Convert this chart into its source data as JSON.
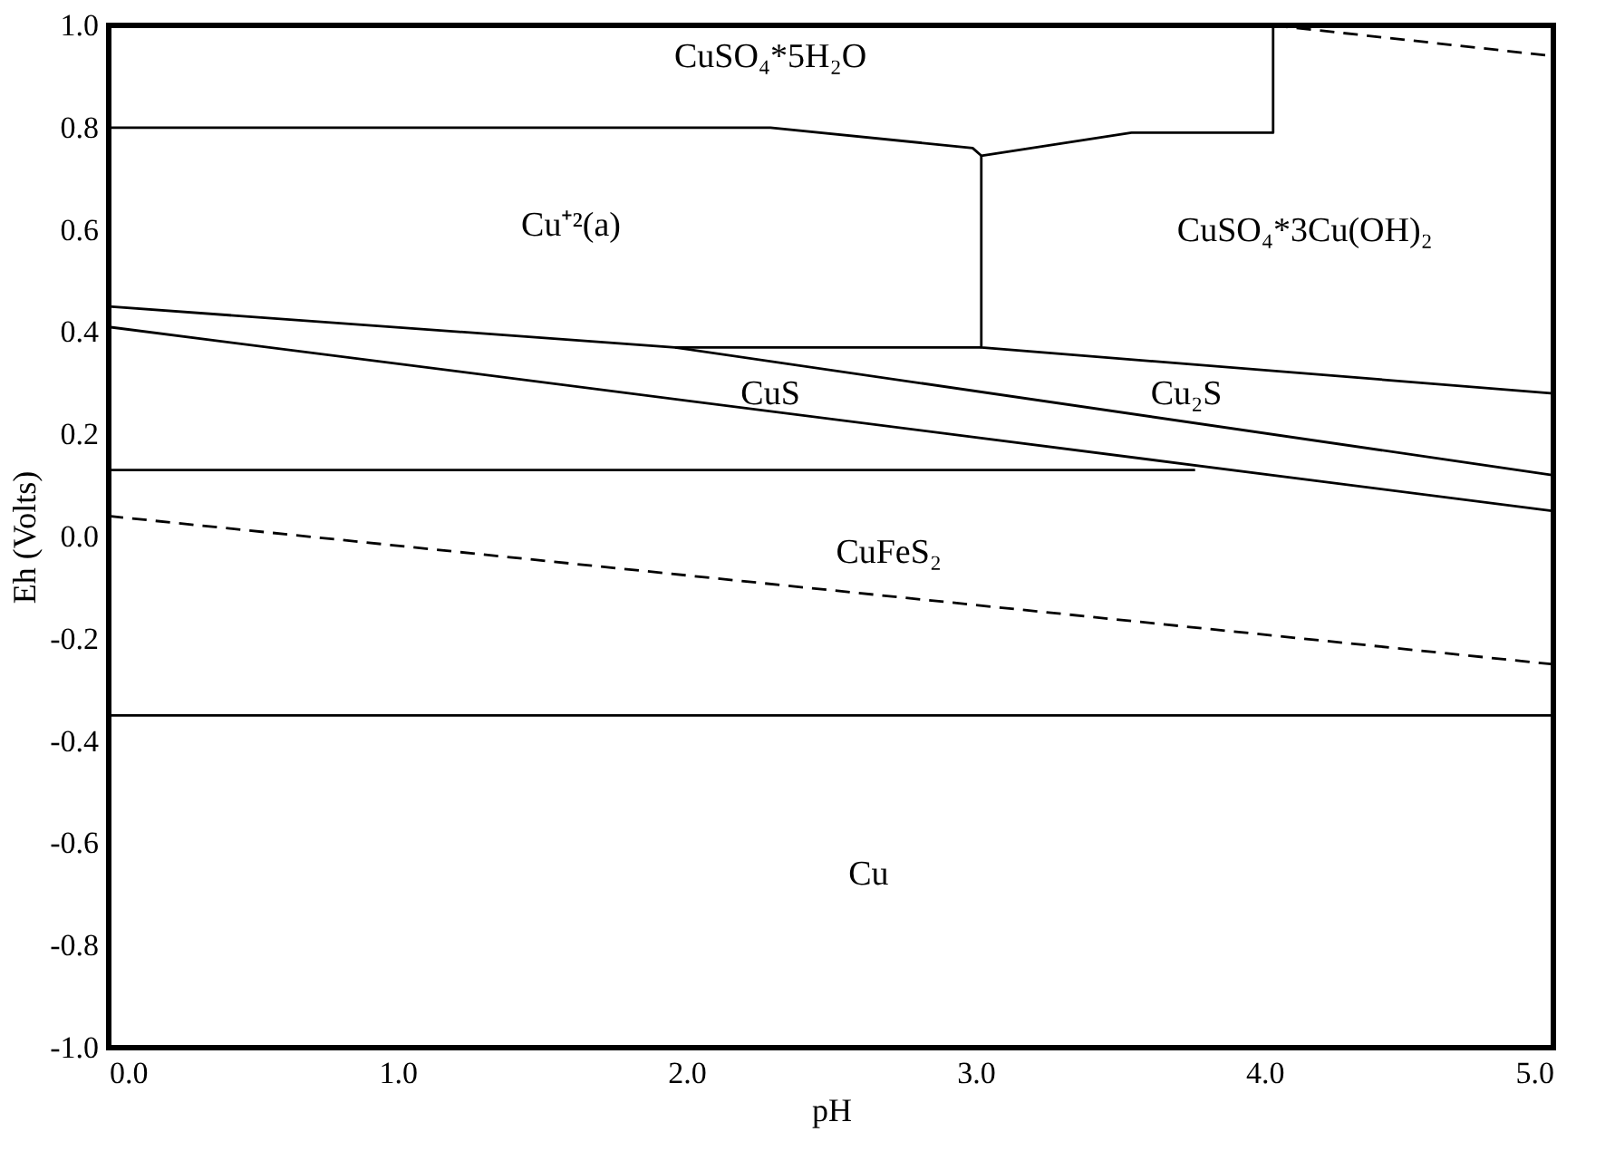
{
  "chart_data": {
    "type": "line",
    "xlabel": "pH",
    "ylabel": "Eh (Volts)",
    "xlim": [
      0,
      5
    ],
    "ylim": [
      -1,
      1
    ],
    "xticks": [
      {
        "value": 0,
        "label": "0.0"
      },
      {
        "value": 1,
        "label": "1.0"
      },
      {
        "value": 2,
        "label": "2.0"
      },
      {
        "value": 3,
        "label": "3.0"
      },
      {
        "value": 4,
        "label": "4.0"
      },
      {
        "value": 5,
        "label": "5.0"
      }
    ],
    "yticks": [
      {
        "value": -1,
        "label": "-1.0"
      },
      {
        "value": -0.8,
        "label": "-0.8"
      },
      {
        "value": -0.6,
        "label": "-0.6"
      },
      {
        "value": -0.4,
        "label": "-0.4"
      },
      {
        "value": -0.2,
        "label": "-0.2"
      },
      {
        "value": 0,
        "label": "0.0"
      },
      {
        "value": 0.2,
        "label": "0.2"
      },
      {
        "value": 0.4,
        "label": "0.4"
      },
      {
        "value": 0.6,
        "label": "0.6"
      },
      {
        "value": 0.8,
        "label": "0.8"
      },
      {
        "value": 1,
        "label": "1.0"
      }
    ],
    "grid": false,
    "marker": "none",
    "series": [
      {
        "color": "#000000",
        "line_style": "solid",
        "x": [
          0,
          2.29,
          2.99,
          3.02,
          3.54,
          4.03,
          4.03
        ],
        "values": [
          0.8,
          0.8,
          0.76,
          0.745,
          0.79,
          0.79,
          1.0
        ]
      },
      {
        "color": "#000000",
        "line_style": "solid",
        "x": [
          3.02,
          3.02,
          5
        ],
        "values": [
          0.745,
          0.37,
          0.28
        ]
      },
      {
        "color": "#000000",
        "line_style": "solid",
        "x": [
          1.96,
          3.02
        ],
        "values": [
          0.37,
          0.37
        ]
      },
      {
        "color": "#000000",
        "line_style": "solid",
        "x": [
          0,
          1.96,
          5
        ],
        "values": [
          0.45,
          0.37,
          0.12
        ]
      },
      {
        "color": "#000000",
        "line_style": "solid",
        "x": [
          0,
          5
        ],
        "values": [
          0.41,
          0.05
        ]
      },
      {
        "color": "#000000",
        "line_style": "solid",
        "x": [
          0,
          3.76
        ],
        "values": [
          0.13,
          0.13
        ]
      },
      {
        "color": "#000000",
        "line_style": "dashed",
        "x": [
          0,
          5
        ],
        "values": [
          0.04,
          -0.25
        ]
      },
      {
        "color": "#000000",
        "line_style": "solid",
        "x": [
          0,
          5
        ],
        "values": [
          -0.35,
          -0.35
        ]
      },
      {
        "color": "#000000",
        "line_style": "dashed",
        "x": [
          4.03,
          5
        ],
        "values": [
          1.0,
          0.94
        ]
      }
    ],
    "annotations": [
      "CuSO₄*5H₂O",
      "Cu⁺²(a)",
      "CuSO₄*3Cu(OH)₂",
      "CuS",
      "Cu₂S",
      "CuFeS₂",
      "Cu"
    ]
  }
}
